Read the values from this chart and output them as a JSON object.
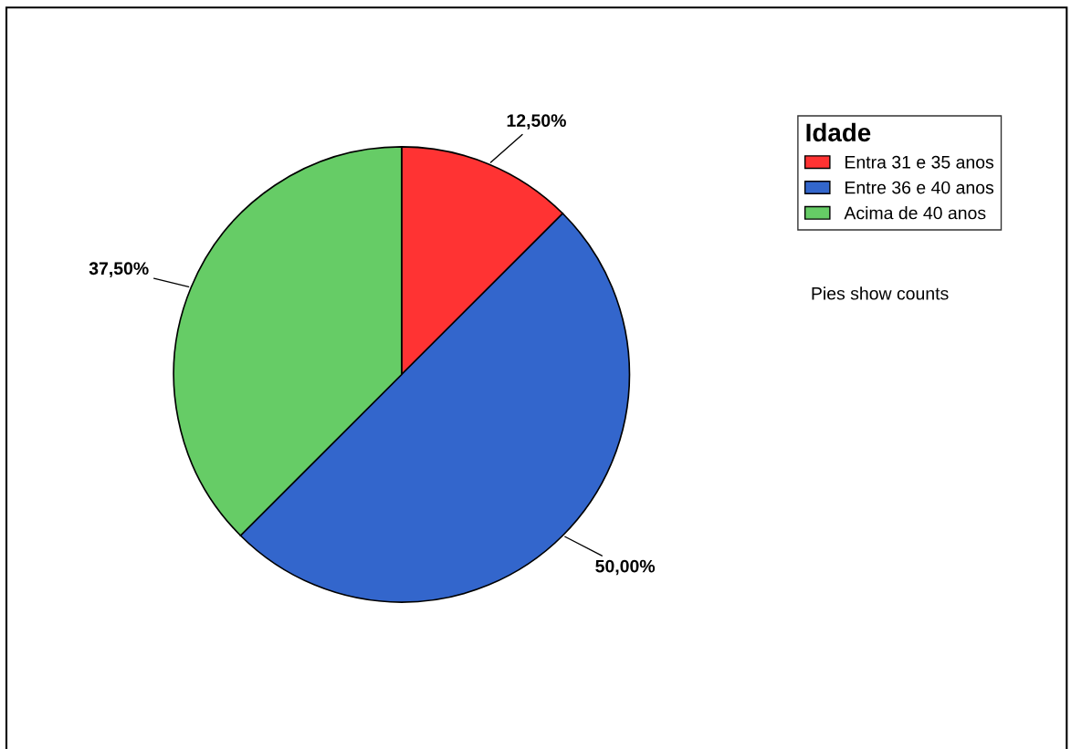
{
  "chart_data": {
    "type": "pie",
    "legend_title": "Idade",
    "categories": [
      "Entra 31 e 35 anos",
      "Entre 36 e 40 anos",
      "Acima de 40 anos"
    ],
    "values": [
      12.5,
      50,
      37.5
    ],
    "colors": [
      "#ff3333",
      "#3366cc",
      "#66cc66"
    ],
    "value_labels": [
      "12,50%",
      "50,00%",
      "37,50%"
    ],
    "annotations": [
      "Pies show counts"
    ],
    "legend": "top right"
  }
}
